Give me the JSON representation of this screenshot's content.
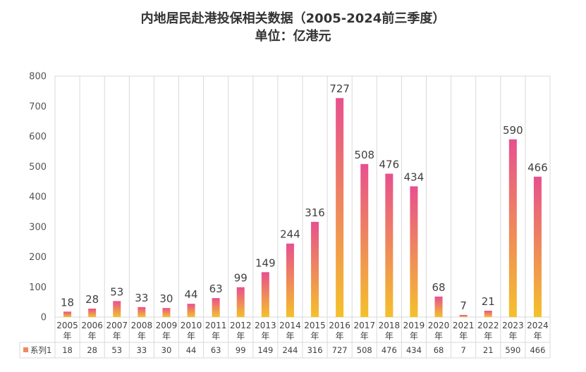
{
  "title_line_1": "内地居民赴港投保相关数据（2005-2024前三季度）",
  "title_line_2": "单位：亿港元",
  "chart_data": {
    "type": "bar",
    "title": "内地居民赴港投保相关数据（2005-2024前三季度）",
    "subtitle": "单位：亿港元",
    "categories": [
      "2005年",
      "2006年",
      "2007年",
      "2008年",
      "2009年",
      "2010年",
      "2011年",
      "2012年",
      "2013年",
      "2014年",
      "2015年",
      "2016年",
      "2017年",
      "2018年",
      "2019年",
      "2020年",
      "2021年",
      "2022年",
      "2023年",
      "2024年"
    ],
    "series": [
      {
        "name": "系列1",
        "values": [
          18,
          28,
          53,
          33,
          30,
          44,
          63,
          99,
          149,
          244,
          316,
          727,
          508,
          476,
          434,
          68,
          7,
          21,
          590,
          466
        ]
      }
    ],
    "ylim": [
      0,
      800
    ],
    "yticks": [
      0,
      100,
      200,
      300,
      400,
      500,
      600,
      700,
      800
    ],
    "grid": "vertical category lines",
    "data_table": true,
    "colors": {
      "bar_top": "#e8508e",
      "bar_bottom": "#f5c02a",
      "legend_key": "#f08a5d"
    }
  }
}
